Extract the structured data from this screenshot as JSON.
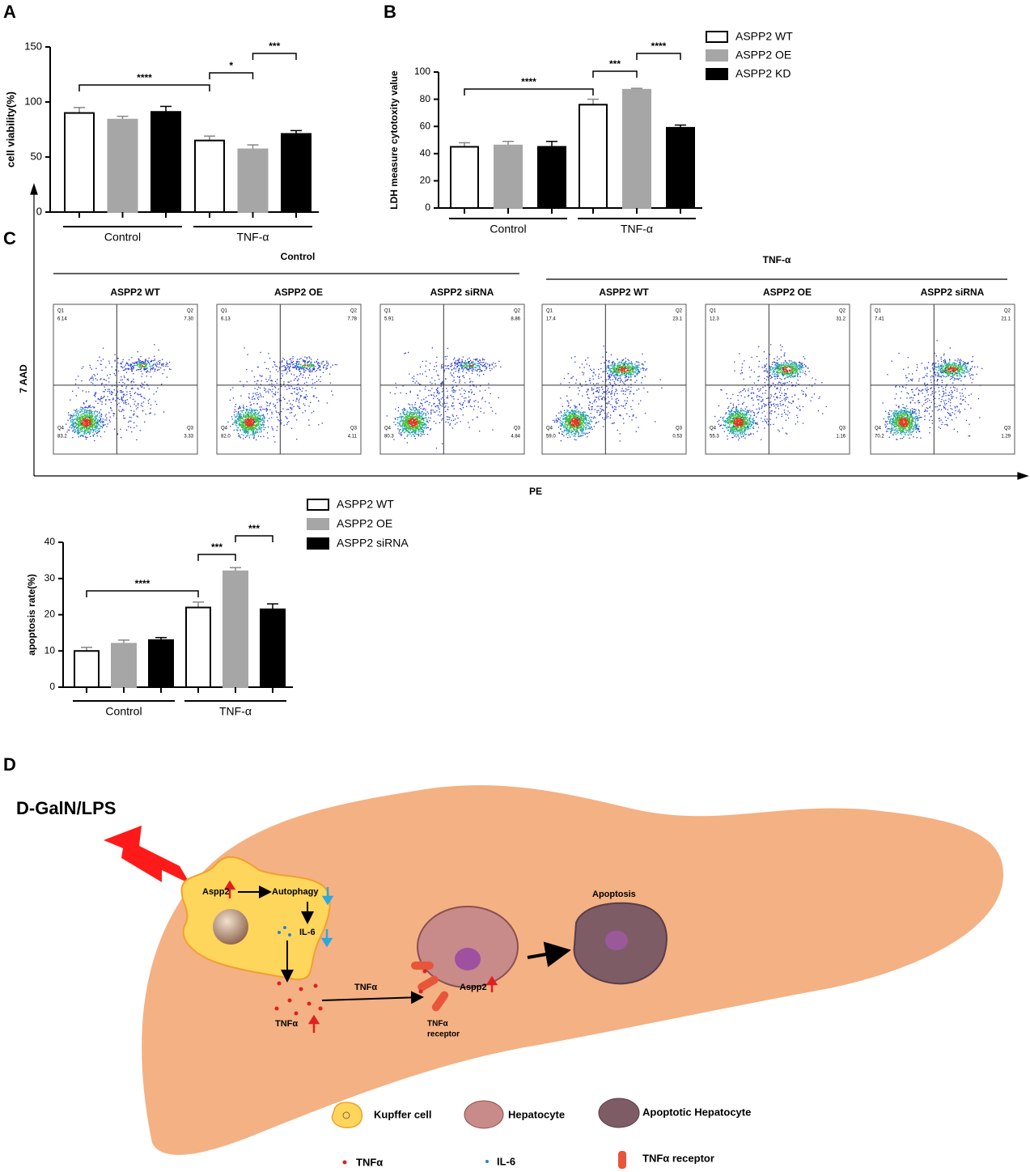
{
  "panel_labels": [
    "A",
    "B",
    "C",
    "D"
  ],
  "chart_data": [
    {
      "type": "bar",
      "ylabel": "cell viability(%)",
      "categories": [
        "Control",
        "TNF-α"
      ],
      "ylim": [
        0,
        150
      ],
      "yticks": [
        0,
        50,
        100,
        150
      ],
      "series": [
        {
          "color": "#ffffff",
          "values": [
            90,
            65
          ],
          "errors": [
            5,
            4
          ]
        },
        {
          "color": "#a6a6a6",
          "values": [
            84,
            57
          ],
          "errors": [
            3,
            4
          ]
        },
        {
          "color": "#000000",
          "values": [
            91,
            71
          ],
          "errors": [
            5,
            3
          ]
        }
      ],
      "annotations": [
        "****",
        "*",
        "***"
      ]
    },
    {
      "type": "bar",
      "ylabel": "LDH measure cytotoxity value",
      "categories": [
        "Control",
        "TNF-α"
      ],
      "ylim": [
        0,
        100
      ],
      "yticks": [
        0,
        20,
        40,
        60,
        80,
        100
      ],
      "series": [
        {
          "name": "ASPP2 WT",
          "color": "#ffffff",
          "values": [
            45,
            76
          ],
          "errors": [
            3,
            4
          ]
        },
        {
          "name": "ASPP2 OE",
          "color": "#a6a6a6",
          "values": [
            46,
            87
          ],
          "errors": [
            3,
            1
          ]
        },
        {
          "name": "ASPP2 KD",
          "color": "#000000",
          "values": [
            45,
            59
          ],
          "errors": [
            4,
            2
          ]
        }
      ],
      "annotations": [
        "****",
        "***",
        "****"
      ]
    },
    {
      "type": "bar",
      "ylabel": "apoptosis rate(%)",
      "categories": [
        "Control",
        "TNF-α"
      ],
      "ylim": [
        0,
        40
      ],
      "yticks": [
        0,
        10,
        20,
        30,
        40
      ],
      "series": [
        {
          "name": "ASPP2 WT",
          "color": "#ffffff",
          "values": [
            10,
            22
          ],
          "errors": [
            1,
            1.5
          ]
        },
        {
          "name": "ASPP2 OE",
          "color": "#a6a6a6",
          "values": [
            12,
            32
          ],
          "errors": [
            1,
            1
          ]
        },
        {
          "name": "ASPP2 siRNA",
          "color": "#000000",
          "values": [
            13,
            21.5
          ],
          "errors": [
            0.7,
            1.5
          ]
        }
      ],
      "annotations": [
        "****",
        "***",
        "***"
      ]
    }
  ],
  "flow": {
    "groups": [
      "Control",
      "TNF-α"
    ],
    "ylabel": "7 AAD",
    "xlabel": "PE",
    "quadrant_names": [
      "Q1",
      "Q2",
      "Q3",
      "Q4"
    ],
    "plots": [
      {
        "title": "ASPP2 WT",
        "quadrants": [
          "6.14",
          "7.30",
          "3.33",
          "83.2"
        ]
      },
      {
        "title": "ASPP2 OE",
        "quadrants": [
          "6.13",
          "7.78",
          "4.11",
          "82.0"
        ]
      },
      {
        "title": "ASPP2 siRNA",
        "quadrants": [
          "5.91",
          "8.86",
          "4.84",
          "80.3"
        ]
      },
      {
        "title": "ASPP2 WT",
        "quadrants": [
          "17.4",
          "23.1",
          "0.53",
          "59.0"
        ]
      },
      {
        "title": "ASPP2 OE",
        "quadrants": [
          "12.3",
          "31.2",
          "1.16",
          "55.3"
        ]
      },
      {
        "title": "ASPP2 siRNA",
        "quadrants": [
          "7.41",
          "21.1",
          "1.29",
          "70.2"
        ]
      }
    ]
  },
  "diagram": {
    "trigger": "D-GalN/LPS",
    "aspp2": "Aspp2",
    "autophagy": "Autophagy",
    "il6": "IL-6",
    "tnf_release": "TNFα",
    "tnf_arrow": "TNFα",
    "hepatocyte_aspp2": "Aspp2",
    "receptor": [
      "TNFα",
      "receptor"
    ],
    "apoptosis": "Apoptosis",
    "legend": [
      "Kupffer cell",
      "Hepatocyte",
      "Apoptotic Hepatocyte",
      "TNFα",
      "IL-6",
      "TNFα receptor"
    ]
  }
}
